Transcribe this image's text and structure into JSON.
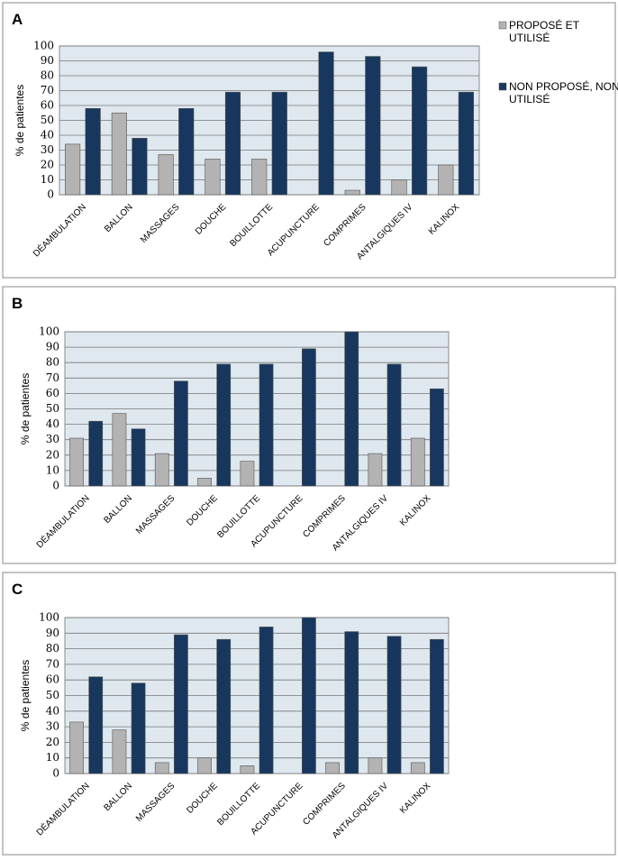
{
  "chart_data": [
    {
      "type": "bar",
      "label": "A",
      "y_label": "% de patientes",
      "categories": [
        "DÉAMBULATION",
        "BALLON",
        "MASSAGES",
        "DOUCHE",
        "BOUILLOTTE",
        "ACUPUNCTURE",
        "COMPRIMES",
        "ANTALGIQUES IV",
        "KALINOX"
      ],
      "series": [
        {
          "name": "PROPOSÉ ET UTILISÉ",
          "color": "#b3b3b3",
          "values": [
            34,
            55,
            27,
            24,
            24,
            0,
            3,
            10,
            20
          ]
        },
        {
          "name": "NON PROPOSÉ, NON UTILISÉ",
          "color": "#17375e",
          "values": [
            58,
            38,
            58,
            69,
            69,
            96,
            93,
            86,
            69
          ]
        }
      ],
      "ylim": [
        0,
        100
      ],
      "yticks": [
        0,
        10,
        20,
        30,
        40,
        50,
        60,
        70,
        80,
        90,
        100
      ],
      "grid": true,
      "legend": "right"
    },
    {
      "type": "bar",
      "label": "B",
      "y_label": "% de patientes",
      "categories": [
        "DÉAMBULATION",
        "BALLON",
        "MASSAGES",
        "DOUCHE",
        "BOUILLOTTE",
        "ACUPUNCTURE",
        "COMPRIMES",
        "ANTALGIQUES IV",
        "KALINOX"
      ],
      "series": [
        {
          "color": "#b3b3b3",
          "values": [
            31,
            47,
            21,
            5,
            16,
            0,
            0,
            21,
            31
          ]
        },
        {
          "color": "#17375e",
          "values": [
            42,
            37,
            68,
            79,
            79,
            89,
            100,
            79,
            63
          ]
        }
      ],
      "ylim": [
        0,
        100
      ],
      "yticks": [
        0,
        10,
        20,
        30,
        40,
        50,
        60,
        70,
        80,
        90,
        100
      ],
      "grid": true
    },
    {
      "type": "bar",
      "label": "C",
      "y_label": "% de patientes",
      "categories": [
        "DÉAMBULATION",
        "BALLON",
        "MASSAGES",
        "DOUCHE",
        "BOUILLOTTE",
        "ACUPUNCTURE",
        "COMPRIMES",
        "ANTALGIQUES IV",
        "KALINOX"
      ],
      "series": [
        {
          "color": "#b3b3b3",
          "values": [
            33,
            28,
            7,
            10,
            5,
            0,
            7,
            10,
            7
          ]
        },
        {
          "color": "#17375e",
          "values": [
            62,
            58,
            89,
            86,
            94,
            100,
            91,
            88,
            86
          ]
        }
      ],
      "ylim": [
        0,
        100
      ],
      "yticks": [
        0,
        10,
        20,
        30,
        40,
        50,
        60,
        70,
        80,
        90,
        100
      ],
      "grid": true
    }
  ]
}
